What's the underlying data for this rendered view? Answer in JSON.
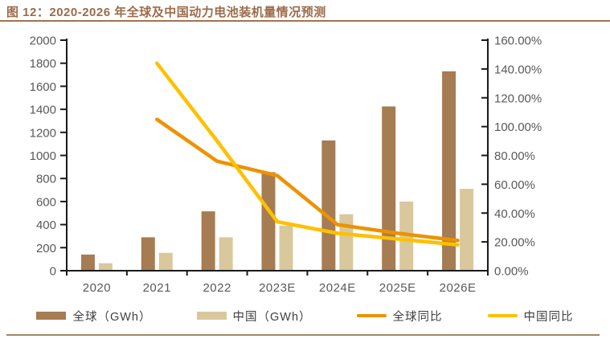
{
  "figure": {
    "title": "图 12：2020-2026 年全球及中国动力电池装机量情况预测"
  },
  "chart_data": {
    "type": "bar",
    "subtype": "combo bar + line, dual axis",
    "title": "2020-2026 年全球及中国动力电池装机量情况预测",
    "categories": [
      "2020",
      "2021",
      "2022",
      "2023E",
      "2024E",
      "2025E",
      "2026E"
    ],
    "bar_series": [
      {
        "key": "global-gwh",
        "name": "全球（GWh）",
        "color": "#A67C52",
        "values": [
          140,
          290,
          515,
          855,
          1130,
          1425,
          1730
        ]
      },
      {
        "key": "china-gwh",
        "name": "中国（GWh）",
        "color": "#D9C89C",
        "values": [
          65,
          155,
          290,
          390,
          490,
          600,
          710
        ]
      }
    ],
    "line_series": [
      {
        "key": "global-yoy",
        "name": "全球同比",
        "color": "#ED9200",
        "values_pct": [
          null,
          105,
          76,
          66,
          32,
          26,
          21
        ]
      },
      {
        "key": "china-yoy",
        "name": "中国同比",
        "color": "#FFC000",
        "values_pct": [
          null,
          144,
          90,
          34,
          26,
          22,
          18
        ]
      }
    ],
    "left_axis": {
      "min": 0,
      "max": 2000,
      "step": 200,
      "ticks": [
        "2000",
        "1800",
        "1600",
        "1400",
        "1200",
        "1000",
        "800",
        "600",
        "400",
        "200",
        "0"
      ]
    },
    "right_axis": {
      "min_pct": 0,
      "max_pct": 160,
      "step_pct": 20,
      "ticks": [
        "160.00%",
        "140.00%",
        "120.00%",
        "100.00%",
        "80.00%",
        "60.00%",
        "40.00%",
        "20.00%",
        "0.00%"
      ]
    },
    "legend_position": "bottom",
    "grid": "off",
    "axis_text_color": "#595959",
    "axis_line_color": "#1a1a1a"
  }
}
